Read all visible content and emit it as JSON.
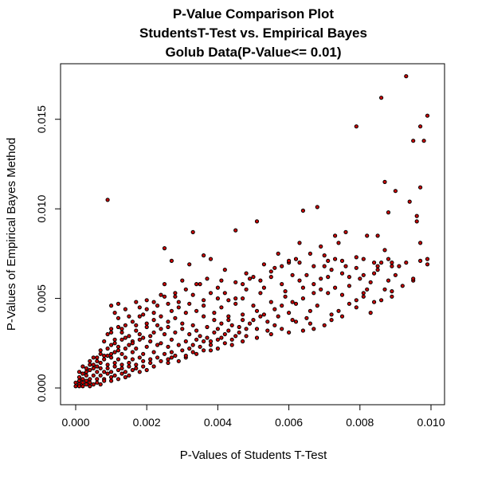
{
  "chart_data": {
    "type": "scatter",
    "title": [
      "P-Value Comparison Plot",
      "StudentsT-Test vs. Empirical Bayes",
      "Golub Data(P-Value<= 0.01)"
    ],
    "xlabel": "P-Values of Students T-Test",
    "ylabel": "P-Values of Empirical Bayes Method",
    "xlim": [
      0.0,
      0.01
    ],
    "ylim": [
      0.0,
      0.0175
    ],
    "xticks": [
      "0.000",
      "0.002",
      "0.004",
      "0.006",
      "0.008",
      "0.010"
    ],
    "yticks": [
      "0.000",
      "0.005",
      "0.010",
      "0.015"
    ],
    "point_fill": "#cc0000",
    "point_stroke": "#000000",
    "grid": false,
    "points": [
      [
        0.0093,
        0.0174
      ],
      [
        0.0086,
        0.0162
      ],
      [
        0.0099,
        0.0152
      ],
      [
        0.0079,
        0.0146
      ],
      [
        0.0097,
        0.0146
      ],
      [
        0.0095,
        0.0138
      ],
      [
        0.0098,
        0.0138
      ],
      [
        0.0087,
        0.0115
      ],
      [
        0.0097,
        0.0112
      ],
      [
        0.009,
        0.011
      ],
      [
        0.0009,
        0.0105
      ],
      [
        0.0094,
        0.0104
      ],
      [
        0.0068,
        0.0101
      ],
      [
        0.0064,
        0.0099
      ],
      [
        0.0088,
        0.0098
      ],
      [
        0.0051,
        0.0093
      ],
      [
        0.0096,
        0.0096
      ],
      [
        0.0096,
        0.0093
      ],
      [
        0.0076,
        0.0087
      ],
      [
        0.0033,
        0.0087
      ],
      [
        0.0045,
        0.0088
      ],
      [
        0.0073,
        0.0085
      ],
      [
        0.0085,
        0.0085
      ],
      [
        0.0082,
        0.0085
      ],
      [
        0.0097,
        0.0081
      ],
      [
        0.0063,
        0.0081
      ],
      [
        0.0069,
        0.0079
      ],
      [
        0.0074,
        0.0081
      ],
      [
        0.0025,
        0.0078
      ],
      [
        0.0087,
        0.0077
      ],
      [
        0.0088,
        0.0072
      ],
      [
        0.0099,
        0.0072
      ],
      [
        0.0097,
        0.0071
      ],
      [
        0.0057,
        0.0075
      ],
      [
        0.0079,
        0.0073
      ],
      [
        0.0071,
        0.0071
      ],
      [
        0.006,
        0.007
      ],
      [
        0.0075,
        0.0071
      ],
      [
        0.0036,
        0.0074
      ],
      [
        0.0081,
        0.0072
      ],
      [
        0.0084,
        0.007
      ],
      [
        0.0086,
        0.007
      ],
      [
        0.0089,
        0.0068
      ],
      [
        0.0089,
        0.007
      ],
      [
        0.0099,
        0.0069
      ],
      [
        0.0032,
        0.0069
      ],
      [
        0.0038,
        0.0072
      ],
      [
        0.0027,
        0.0071
      ],
      [
        0.006,
        0.0071
      ],
      [
        0.0063,
        0.007
      ],
      [
        0.0067,
        0.0068
      ],
      [
        0.007,
        0.0068
      ],
      [
        0.0053,
        0.0069
      ],
      [
        0.0056,
        0.0067
      ],
      [
        0.0042,
        0.0066
      ],
      [
        0.0072,
        0.0066
      ],
      [
        0.0085,
        0.0068
      ],
      [
        0.0084,
        0.0064
      ],
      [
        0.008,
        0.0061
      ],
      [
        0.0061,
        0.0063
      ],
      [
        0.0065,
        0.0063
      ],
      [
        0.0055,
        0.0062
      ],
      [
        0.0048,
        0.0064
      ],
      [
        0.005,
        0.0062
      ],
      [
        0.0095,
        0.006
      ],
      [
        0.003,
        0.006
      ],
      [
        0.0025,
        0.0058
      ],
      [
        0.0035,
        0.0058
      ],
      [
        0.004,
        0.0056
      ],
      [
        0.0047,
        0.0058
      ],
      [
        0.0058,
        0.0058
      ],
      [
        0.0063,
        0.006
      ],
      [
        0.0077,
        0.0057
      ],
      [
        0.0073,
        0.0056
      ],
      [
        0.0082,
        0.0055
      ],
      [
        0.0081,
        0.0053
      ],
      [
        0.0087,
        0.0055
      ],
      [
        0.0089,
        0.0051
      ],
      [
        0.0084,
        0.0048
      ],
      [
        0.0079,
        0.0049
      ],
      [
        0.0067,
        0.0053
      ],
      [
        0.0059,
        0.0051
      ],
      [
        0.0052,
        0.0053
      ],
      [
        0.0047,
        0.005
      ],
      [
        0.0042,
        0.0053
      ],
      [
        0.0038,
        0.0053
      ],
      [
        0.0033,
        0.0052
      ],
      [
        0.0028,
        0.0051
      ],
      [
        0.0024,
        0.0052
      ],
      [
        0.002,
        0.0049
      ],
      [
        0.0017,
        0.0048
      ],
      [
        0.0012,
        0.0047
      ],
      [
        0.001,
        0.0046
      ],
      [
        0.0014,
        0.0044
      ],
      [
        0.0018,
        0.0045
      ],
      [
        0.0023,
        0.0046
      ],
      [
        0.0029,
        0.0045
      ],
      [
        0.0036,
        0.0046
      ],
      [
        0.0041,
        0.0045
      ],
      [
        0.0045,
        0.0047
      ],
      [
        0.005,
        0.0046
      ],
      [
        0.0055,
        0.0048
      ],
      [
        0.0062,
        0.0047
      ],
      [
        0.0068,
        0.0046
      ],
      [
        0.0074,
        0.0043
      ],
      [
        0.0079,
        0.0045
      ],
      [
        0.0083,
        0.0042
      ],
      [
        0.0072,
        0.0041
      ],
      [
        0.0066,
        0.0043
      ],
      [
        0.006,
        0.0042
      ],
      [
        0.0057,
        0.004
      ],
      [
        0.0051,
        0.0043
      ],
      [
        0.0047,
        0.0041
      ],
      [
        0.0043,
        0.004
      ],
      [
        0.0039,
        0.0042
      ],
      [
        0.0036,
        0.004
      ],
      [
        0.0034,
        0.0043
      ],
      [
        0.0031,
        0.0042
      ],
      [
        0.0027,
        0.0043
      ],
      [
        0.0022,
        0.0042
      ],
      [
        0.0019,
        0.0041
      ],
      [
        0.0015,
        0.004
      ],
      [
        0.0012,
        0.0039
      ],
      [
        0.0011,
        0.0042
      ],
      [
        0.0065,
        0.0039
      ],
      [
        0.0061,
        0.0038
      ],
      [
        0.0054,
        0.0037
      ],
      [
        0.0049,
        0.0036
      ],
      [
        0.0044,
        0.0035
      ],
      [
        0.0041,
        0.0036
      ],
      [
        0.0037,
        0.0034
      ],
      [
        0.0033,
        0.0035
      ],
      [
        0.003,
        0.0036
      ],
      [
        0.0026,
        0.0034
      ],
      [
        0.0023,
        0.0035
      ],
      [
        0.002,
        0.0034
      ],
      [
        0.0017,
        0.0035
      ],
      [
        0.0013,
        0.0033
      ],
      [
        0.001,
        0.0031
      ],
      [
        0.0009,
        0.003
      ],
      [
        0.0013,
        0.0031
      ],
      [
        0.0018,
        0.003
      ],
      [
        0.0022,
        0.0031
      ],
      [
        0.0025,
        0.003
      ],
      [
        0.0028,
        0.0031
      ],
      [
        0.0032,
        0.003
      ],
      [
        0.0035,
        0.0029
      ],
      [
        0.0039,
        0.0031
      ],
      [
        0.0042,
        0.003
      ],
      [
        0.0046,
        0.0031
      ],
      [
        0.0051,
        0.0033
      ],
      [
        0.0044,
        0.0027
      ],
      [
        0.0041,
        0.0028
      ],
      [
        0.0038,
        0.0026
      ],
      [
        0.0034,
        0.0027
      ],
      [
        0.0031,
        0.0026
      ],
      [
        0.0027,
        0.0027
      ],
      [
        0.0024,
        0.0025
      ],
      [
        0.0021,
        0.0026
      ],
      [
        0.0018,
        0.0027
      ],
      [
        0.0016,
        0.0026
      ],
      [
        0.0014,
        0.0028
      ],
      [
        0.0011,
        0.0027
      ],
      [
        0.0008,
        0.0026
      ],
      [
        0.001,
        0.0024
      ],
      [
        0.0012,
        0.0023
      ],
      [
        0.0015,
        0.0024
      ],
      [
        0.0017,
        0.0022
      ],
      [
        0.002,
        0.0023
      ],
      [
        0.0023,
        0.0024
      ],
      [
        0.0026,
        0.0023
      ],
      [
        0.0029,
        0.0024
      ],
      [
        0.0032,
        0.0022
      ],
      [
        0.0035,
        0.0023
      ],
      [
        0.0038,
        0.0024
      ],
      [
        0.004,
        0.0022
      ],
      [
        0.0036,
        0.0021
      ],
      [
        0.0033,
        0.002
      ],
      [
        0.003,
        0.0021
      ],
      [
        0.0027,
        0.002
      ],
      [
        0.0025,
        0.0019
      ],
      [
        0.0022,
        0.002
      ],
      [
        0.0019,
        0.0019
      ],
      [
        0.0016,
        0.002
      ],
      [
        0.0013,
        0.0019
      ],
      [
        0.0011,
        0.002
      ],
      [
        0.0009,
        0.0018
      ],
      [
        0.0007,
        0.0019
      ],
      [
        0.0006,
        0.0017
      ],
      [
        0.0008,
        0.0016
      ],
      [
        0.001,
        0.0017
      ],
      [
        0.0012,
        0.0016
      ],
      [
        0.0014,
        0.0017
      ],
      [
        0.0016,
        0.0016
      ],
      [
        0.0018,
        0.0017
      ],
      [
        0.0021,
        0.0016
      ],
      [
        0.0023,
        0.0017
      ],
      [
        0.0026,
        0.0016
      ],
      [
        0.0028,
        0.0018
      ],
      [
        0.0031,
        0.0017
      ],
      [
        0.0029,
        0.0015
      ],
      [
        0.0026,
        0.0014
      ],
      [
        0.0024,
        0.0015
      ],
      [
        0.0021,
        0.0014
      ],
      [
        0.0019,
        0.0015
      ],
      [
        0.0017,
        0.0013
      ],
      [
        0.0015,
        0.0014
      ],
      [
        0.0013,
        0.0013
      ],
      [
        0.0011,
        0.0014
      ],
      [
        0.0009,
        0.0013
      ],
      [
        0.0007,
        0.0014
      ],
      [
        0.0006,
        0.0012
      ],
      [
        0.0004,
        0.0013
      ],
      [
        0.0005,
        0.0011
      ],
      [
        0.0007,
        0.0011
      ],
      [
        0.0009,
        0.0011
      ],
      [
        0.0011,
        0.0012
      ],
      [
        0.0013,
        0.0011
      ],
      [
        0.0015,
        0.0012
      ],
      [
        0.0017,
        0.0011
      ],
      [
        0.0019,
        0.0012
      ],
      [
        0.0022,
        0.0012
      ],
      [
        0.002,
        0.001
      ],
      [
        0.0018,
        0.0009
      ],
      [
        0.0016,
        0.001
      ],
      [
        0.0014,
        0.0009
      ],
      [
        0.0012,
        0.001
      ],
      [
        0.001,
        0.0009
      ],
      [
        0.0008,
        0.0009
      ],
      [
        0.0006,
        0.0009
      ],
      [
        0.0004,
        0.001
      ],
      [
        0.0003,
        0.0009
      ],
      [
        0.0002,
        0.0008
      ],
      [
        0.0003,
        0.0007
      ],
      [
        0.0005,
        0.0007
      ],
      [
        0.0007,
        0.0007
      ],
      [
        0.0009,
        0.0008
      ],
      [
        0.0011,
        0.0007
      ],
      [
        0.0013,
        0.0008
      ],
      [
        0.0015,
        0.0007
      ],
      [
        0.0014,
        0.0006
      ],
      [
        0.0012,
        0.0005
      ],
      [
        0.001,
        0.0006
      ],
      [
        0.0008,
        0.0005
      ],
      [
        0.0006,
        0.0005
      ],
      [
        0.0004,
        0.0005
      ],
      [
        0.0003,
        0.0004
      ],
      [
        0.0002,
        0.0005
      ],
      [
        0.0001,
        0.0004
      ],
      [
        0.0002,
        0.0003
      ],
      [
        0.0004,
        0.0003
      ],
      [
        0.0006,
        0.0003
      ],
      [
        0.0008,
        0.0004
      ],
      [
        0.001,
        0.0004
      ],
      [
        0.0001,
        0.0002
      ],
      [
        0.0003,
        0.0002
      ],
      [
        0.0005,
        0.0002
      ],
      [
        0.0007,
        0.0002
      ],
      [
        0.0001,
        0.0001
      ],
      [
        0.0002,
        0.0001
      ],
      [
        0.0004,
        0.0001
      ],
      [
        0.0,
        0.0001
      ],
      [
        0.0,
        0.0003
      ],
      [
        0.0001,
        0.0006
      ],
      [
        0.0002,
        0.0008
      ],
      [
        0.0001,
        0.0009
      ],
      [
        0.0003,
        0.0011
      ],
      [
        0.0005,
        0.0013
      ],
      [
        0.0002,
        0.0012
      ],
      [
        0.0004,
        0.0015
      ],
      [
        0.0006,
        0.0015
      ],
      [
        0.0008,
        0.0018
      ],
      [
        0.0005,
        0.0017
      ],
      [
        0.001,
        0.0019
      ],
      [
        0.0007,
        0.0021
      ],
      [
        0.0012,
        0.0021
      ],
      [
        0.0009,
        0.0022
      ],
      [
        0.0014,
        0.0022
      ],
      [
        0.0011,
        0.0025
      ],
      [
        0.0016,
        0.0025
      ],
      [
        0.0013,
        0.0027
      ],
      [
        0.0019,
        0.0028
      ],
      [
        0.0015,
        0.0029
      ],
      [
        0.0021,
        0.0029
      ],
      [
        0.0017,
        0.0032
      ],
      [
        0.0024,
        0.0033
      ],
      [
        0.002,
        0.0036
      ],
      [
        0.0026,
        0.0037
      ],
      [
        0.0022,
        0.0038
      ],
      [
        0.0028,
        0.0039
      ],
      [
        0.0024,
        0.004
      ],
      [
        0.003,
        0.0033
      ],
      [
        0.0034,
        0.0032
      ],
      [
        0.0037,
        0.0028
      ],
      [
        0.004,
        0.0033
      ],
      [
        0.0043,
        0.0032
      ],
      [
        0.0046,
        0.0034
      ],
      [
        0.0048,
        0.0029
      ],
      [
        0.005,
        0.0038
      ],
      [
        0.0053,
        0.0041
      ],
      [
        0.0056,
        0.0044
      ],
      [
        0.0058,
        0.0046
      ],
      [
        0.0061,
        0.0048
      ],
      [
        0.0064,
        0.005
      ],
      [
        0.0067,
        0.0058
      ],
      [
        0.0069,
        0.0061
      ],
      [
        0.0071,
        0.0062
      ],
      [
        0.0075,
        0.0064
      ],
      [
        0.0077,
        0.0062
      ],
      [
        0.0083,
        0.0059
      ],
      [
        0.0085,
        0.0066
      ],
      [
        0.0091,
        0.0068
      ],
      [
        0.0093,
        0.007
      ],
      [
        0.0075,
        0.0052
      ],
      [
        0.0071,
        0.0053
      ],
      [
        0.0069,
        0.0055
      ],
      [
        0.0064,
        0.0056
      ],
      [
        0.0059,
        0.0054
      ],
      [
        0.0053,
        0.0056
      ],
      [
        0.0048,
        0.0055
      ],
      [
        0.0045,
        0.005
      ],
      [
        0.0043,
        0.0049
      ],
      [
        0.004,
        0.005
      ],
      [
        0.0036,
        0.0049
      ],
      [
        0.0032,
        0.0047
      ],
      [
        0.0029,
        0.0048
      ],
      [
        0.0026,
        0.0047
      ],
      [
        0.0039,
        0.0038
      ],
      [
        0.0043,
        0.0038
      ],
      [
        0.0047,
        0.0038
      ],
      [
        0.0052,
        0.004
      ],
      [
        0.0056,
        0.0035
      ],
      [
        0.0062,
        0.0037
      ],
      [
        0.0066,
        0.0036
      ],
      [
        0.007,
        0.0035
      ],
      [
        0.0058,
        0.0033
      ],
      [
        0.0054,
        0.0032
      ],
      [
        0.0048,
        0.0033
      ],
      [
        0.0045,
        0.0029
      ],
      [
        0.0042,
        0.0025
      ],
      [
        0.0038,
        0.0021
      ],
      [
        0.0034,
        0.0019
      ],
      [
        0.0031,
        0.0018
      ],
      [
        0.0027,
        0.0017
      ],
      [
        0.0033,
        0.0024
      ],
      [
        0.0036,
        0.0026
      ],
      [
        0.004,
        0.0027
      ],
      [
        0.0044,
        0.0024
      ],
      [
        0.0047,
        0.0026
      ],
      [
        0.0051,
        0.0028
      ],
      [
        0.0055,
        0.003
      ],
      [
        0.006,
        0.0031
      ],
      [
        0.0064,
        0.0032
      ],
      [
        0.0067,
        0.0033
      ],
      [
        0.0072,
        0.0038
      ],
      [
        0.0075,
        0.004
      ],
      [
        0.0077,
        0.0047
      ],
      [
        0.0081,
        0.0051
      ],
      [
        0.0086,
        0.0049
      ],
      [
        0.0089,
        0.0054
      ],
      [
        0.0092,
        0.0057
      ],
      [
        0.0095,
        0.0061
      ],
      [
        0.009,
        0.0063
      ],
      [
        0.0088,
        0.006
      ],
      [
        0.0081,
        0.0063
      ],
      [
        0.0079,
        0.0067
      ],
      [
        0.0076,
        0.0068
      ],
      [
        0.0073,
        0.0072
      ],
      [
        0.007,
        0.0074
      ],
      [
        0.0066,
        0.0075
      ],
      [
        0.0062,
        0.0072
      ],
      [
        0.0058,
        0.0068
      ],
      [
        0.0055,
        0.0065
      ],
      [
        0.0052,
        0.006
      ],
      [
        0.0049,
        0.0061
      ],
      [
        0.0045,
        0.0059
      ],
      [
        0.0041,
        0.006
      ],
      [
        0.0037,
        0.0061
      ],
      [
        0.0034,
        0.0058
      ],
      [
        0.0031,
        0.0055
      ],
      [
        0.0028,
        0.0053
      ],
      [
        0.0025,
        0.0051
      ],
      [
        0.0022,
        0.0048
      ],
      [
        0.002,
        0.0044
      ],
      [
        0.0018,
        0.004
      ],
      [
        0.0016,
        0.0037
      ],
      [
        0.0014,
        0.0035
      ],
      [
        0.0012,
        0.0034
      ],
      [
        0.001,
        0.0033
      ]
    ]
  }
}
